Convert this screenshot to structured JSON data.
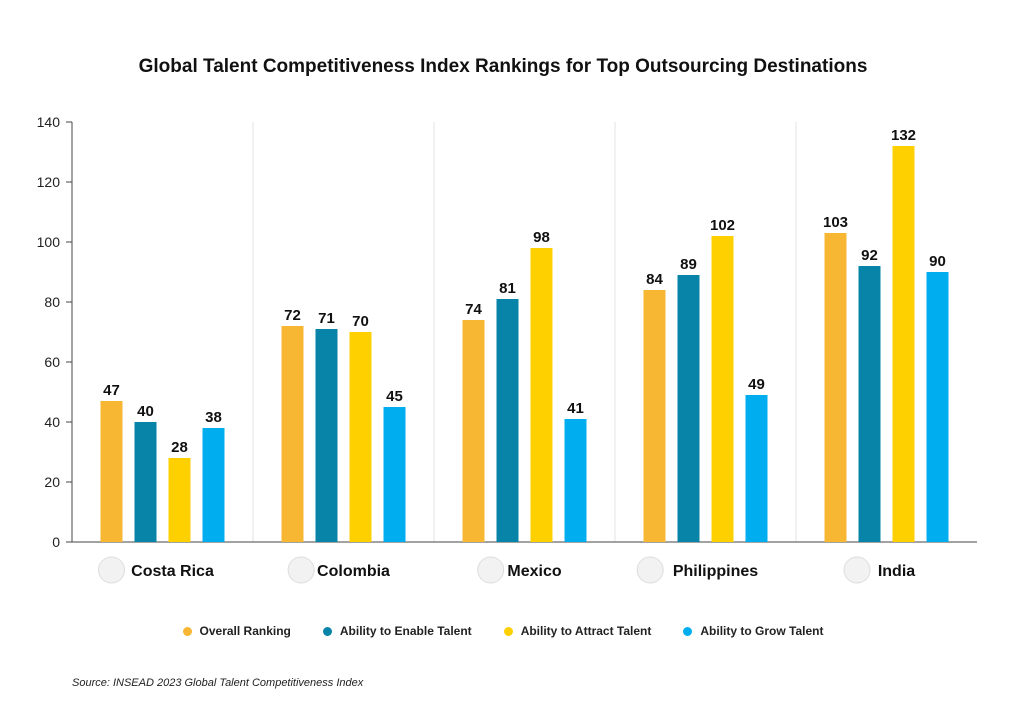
{
  "chart_data": {
    "type": "bar",
    "title": "Global Talent Competitiveness Index Rankings for Top Outsourcing Destinations",
    "categories": [
      "Costa Rica",
      "Colombia",
      "Mexico",
      "Philippines",
      "India"
    ],
    "series": [
      {
        "name": "Overall Ranking",
        "color": "#F7B733",
        "values": [
          47,
          72,
          74,
          84,
          103
        ]
      },
      {
        "name": "Ability to Enable Talent",
        "color": "#0784A8",
        "values": [
          40,
          71,
          81,
          89,
          92
        ]
      },
      {
        "name": "Ability to Attract Talent",
        "color": "#FFD000",
        "values": [
          28,
          70,
          98,
          102,
          132
        ]
      },
      {
        "name": "Ability to Grow Talent",
        "color": "#00AEEF",
        "values": [
          38,
          45,
          41,
          49,
          90
        ]
      }
    ],
    "ylim": [
      0,
      140
    ],
    "yticks": [
      0,
      20,
      40,
      60,
      80,
      100,
      120,
      140
    ],
    "grid": "vertical separators between categories",
    "legend_position": "bottom"
  },
  "source": "Source: INSEAD 2023 Global Talent Competitiveness Index"
}
